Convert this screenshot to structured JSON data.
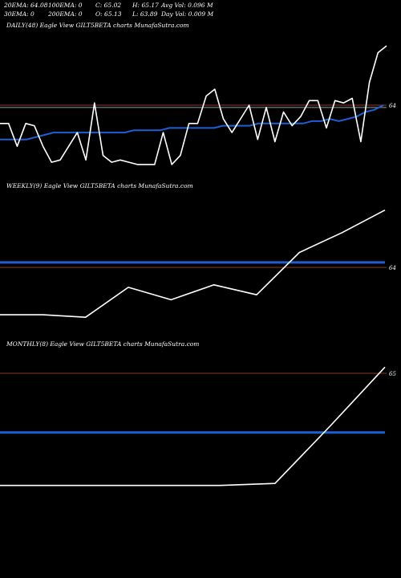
{
  "header": {
    "row1": [
      "20EMA: 64.08",
      "100EMA: 0",
      "C: 65.02",
      "H: 65.17",
      "Avg Vol: 0.096  M"
    ],
    "row2": [
      "30EMA: 0",
      "200EMA: 0",
      "O: 65.13",
      "L: 63.89",
      "Day Vol: 0.009 M"
    ]
  },
  "panels": [
    {
      "title": "DAILY(48) Eagle   View  GILT5BETA charts MunafaSutra.com",
      "level_label": "64"
    },
    {
      "title": "WEEKLY(9) Eagle   View  GILT5BETA charts MunafaSutra.com",
      "level_label": "64"
    },
    {
      "title": "MONTHLY(8) Eagle   View  GILT5BETA charts MunafaSutra.com",
      "level_label": "65"
    }
  ],
  "colors": {
    "price": "#ffffff",
    "ema": "#1f5fd6",
    "level": "#8b3a2a",
    "gray_level": "#9a9a9a",
    "background": "#000000"
  },
  "chart_data": [
    {
      "type": "line",
      "name": "daily",
      "price": [
        63.94,
        63.94,
        63.84,
        63.94,
        63.93,
        63.84,
        63.77,
        63.78,
        63.84,
        63.9,
        63.78,
        64.03,
        63.8,
        63.77,
        63.78,
        63.77,
        63.76,
        63.76,
        63.76,
        63.9,
        63.76,
        63.8,
        63.94,
        63.94,
        64.06,
        64.09,
        63.96,
        63.9,
        63.96,
        64.02,
        63.87,
        64.01,
        63.86,
        63.99,
        63.93,
        63.97,
        64.04,
        64.04,
        63.92,
        64.04,
        64.03,
        64.05,
        63.86,
        64.12,
        64.25,
        64.28
      ],
      "ema": [
        63.87,
        63.87,
        63.87,
        63.87,
        63.88,
        63.89,
        63.9,
        63.9,
        63.9,
        63.9,
        63.9,
        63.9,
        63.9,
        63.9,
        63.9,
        63.91,
        63.91,
        63.91,
        63.91,
        63.92,
        63.92,
        63.92,
        63.92,
        63.92,
        63.92,
        63.93,
        63.93,
        63.93,
        63.93,
        63.94,
        63.94,
        63.94,
        63.94,
        63.94,
        63.94,
        63.95,
        63.95,
        63.96,
        63.95,
        63.96,
        63.97,
        63.99,
        64.0,
        64.02
      ],
      "levels": [
        64.02,
        64.01
      ],
      "ylim": [
        63.7,
        64.34
      ]
    },
    {
      "type": "line",
      "name": "weekly",
      "price": [
        63.81,
        63.81,
        63.8,
        63.92,
        63.87,
        63.93,
        63.89,
        64.06,
        64.14,
        64.23
      ],
      "ema": [
        64.02,
        64.02
      ],
      "levels": [
        64.0
      ],
      "ylim": [
        63.72,
        64.3
      ]
    },
    {
      "type": "line",
      "name": "monthly",
      "price": [
        63.64,
        63.64,
        63.64,
        63.64,
        63.64,
        63.65,
        63.93,
        64.22
      ],
      "ema": [
        63.9,
        63.9
      ],
      "levels": [
        64.19
      ],
      "ylim": [
        63.58,
        64.3
      ]
    }
  ]
}
